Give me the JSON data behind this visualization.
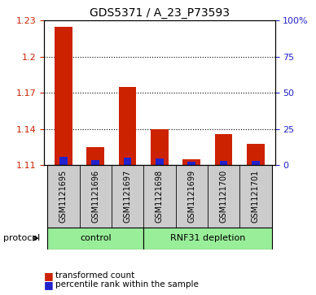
{
  "title": "GDS5371 / A_23_P73593",
  "samples": [
    "GSM1121695",
    "GSM1121696",
    "GSM1121697",
    "GSM1121698",
    "GSM1121699",
    "GSM1121700",
    "GSM1121701"
  ],
  "transformed_count": [
    1.225,
    1.125,
    1.175,
    1.14,
    1.115,
    1.136,
    1.128
  ],
  "percentile_rank": [
    5.5,
    3.5,
    5.0,
    4.5,
    2.5,
    3.0,
    3.0
  ],
  "ylim_left": [
    1.11,
    1.23
  ],
  "yticks_left": [
    1.11,
    1.14,
    1.17,
    1.2,
    1.23
  ],
  "ylim_right": [
    0,
    100
  ],
  "yticks_right": [
    0,
    25,
    50,
    75,
    100
  ],
  "ytick_labels_right": [
    "0",
    "25",
    "50",
    "75",
    "100%"
  ],
  "grid_lines": [
    1.14,
    1.17,
    1.2
  ],
  "control_label": "control",
  "depletion_label": "RNF31 depletion",
  "protocol_label": "protocol",
  "legend_red": "transformed count",
  "legend_blue": "percentile rank within the sample",
  "bar_color_red": "#cc2200",
  "bar_color_blue": "#2222cc",
  "control_bg": "#99ee99",
  "sample_bg": "#cccccc",
  "bar_width": 0.55,
  "base_value": 1.11,
  "n_control": 3
}
